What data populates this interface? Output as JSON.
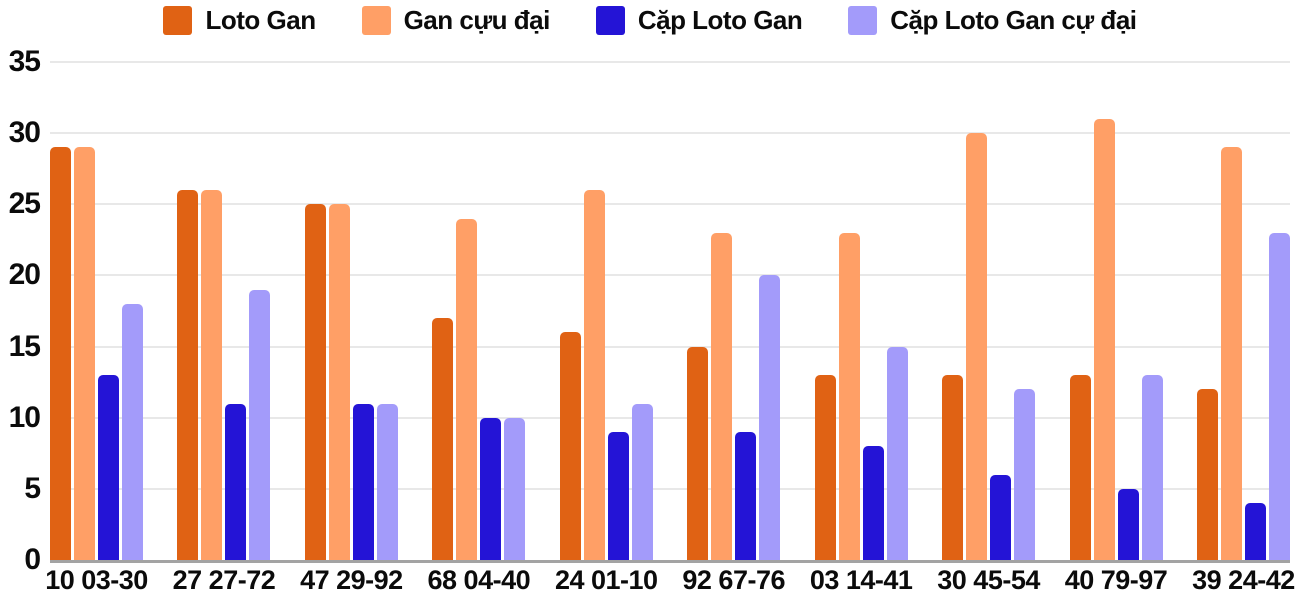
{
  "chart_data": {
    "type": "bar",
    "title": "",
    "xlabel": "",
    "ylabel": "",
    "categories": [
      "10 03-30",
      "27 27-72",
      "47 29-92",
      "68 04-40",
      "24 01-10",
      "92 67-76",
      "03 14-41",
      "30 45-54",
      "40 79-97",
      "39 24-42"
    ],
    "series": [
      {
        "name": "Loto Gan",
        "color": "#e06214",
        "values": [
          29,
          26,
          25,
          17,
          16,
          15,
          13,
          13,
          13,
          12
        ]
      },
      {
        "name": "Gan cựu đại",
        "color": "#ff9f66",
        "values": [
          29,
          26,
          25,
          24,
          26,
          23,
          23,
          30,
          31,
          29
        ]
      },
      {
        "name": "Cặp Loto Gan",
        "color": "#2414d6",
        "values": [
          13,
          11,
          11,
          10,
          9,
          9,
          8,
          6,
          5,
          4
        ]
      },
      {
        "name": "Cặp Loto Gan cự đại",
        "color": "#a39bfa",
        "values": [
          18,
          19,
          11,
          10,
          11,
          20,
          15,
          12,
          13,
          23
        ]
      }
    ],
    "ylim": [
      0,
      35
    ],
    "yticks": [
      35,
      30,
      25,
      20,
      15,
      10,
      5,
      0
    ],
    "grid": true,
    "legend_position": "top",
    "colors": {
      "gridline": "#e8e8e8",
      "axis_line": "#a3a3a3",
      "text": "#0b0b0b",
      "background": "#ffffff"
    }
  }
}
